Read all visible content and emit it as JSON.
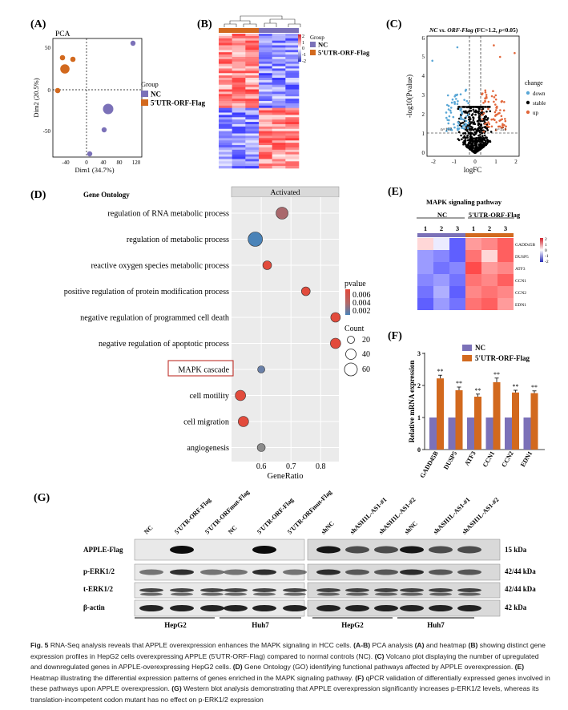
{
  "panel_labels": {
    "a": "(A)",
    "b": "(B)",
    "c": "(C)",
    "d": "(D)",
    "e": "(E)",
    "f": "(F)",
    "g": "(G)"
  },
  "colors": {
    "nc": "#7b71b8",
    "orf": "#d2691e",
    "down": "#5aa7d6",
    "up": "#e2683c",
    "stable": "#000000",
    "high": "#e04a3a",
    "low": "#3a3fc8"
  },
  "pca": {
    "title": "PCA",
    "xlabel": "Dim1 (34.7%)",
    "ylabel": "Dim2 (20.5%)",
    "legend_title": "Group",
    "legend_items": [
      "NC",
      "5'UTR-ORF-Flag"
    ],
    "xticks": [
      "-40",
      "0",
      "40",
      "80",
      "120"
    ],
    "yticks": [
      "50",
      "0",
      "-50"
    ]
  },
  "heatmap_b": {
    "legend_title": "Group",
    "legend_items": [
      "NC",
      "5'UTR-ORF-Flag"
    ],
    "scale_ticks": [
      "2",
      "1",
      "0",
      "-1",
      "-2"
    ]
  },
  "volcano": {
    "title_italic": "NC vs. ORF-Flag",
    "title_rest": " (FC>1.2, ",
    "title_p": "p",
    "title_end": "<0.05)",
    "xlabel": "logFC",
    "ylabel": "-log10(Pvalue)",
    "xticks": [
      "-2",
      "-1",
      "0",
      "1",
      "2"
    ],
    "yticks": [
      "0",
      "1",
      "2",
      "3",
      "4",
      "5",
      "6"
    ],
    "n_down": "n=157",
    "n_up": "n=151",
    "legend_title": "change",
    "legend_items": [
      "down",
      "stable",
      "up"
    ]
  },
  "go": {
    "header": "Gene Ontology",
    "strip": "Activated",
    "xlabel": "GeneRatio",
    "xticks": [
      "0.6",
      "0.7",
      "0.8"
    ],
    "highlight_term": "MAPK cascade",
    "terms": [
      "regulation of RNA metabolic process",
      "regulation of metabolic process",
      "reactive oxygen species metabolic process",
      "positive regulation of protein modification process",
      "negative regulation of programmed cell death",
      "negative regulation of apoptotic process",
      "MAPK cascade",
      "cell motility",
      "cell migration",
      "angiogenesis"
    ],
    "pvalue_title": "pvalue",
    "pvalue_ticks": [
      "0.006",
      "0.004",
      "0.002"
    ],
    "count_title": "Count",
    "count_ticks": [
      "20",
      "40",
      "60"
    ]
  },
  "mapk_heatmap": {
    "title": "MAPK signaling pathway",
    "group_nc": "NC",
    "group_orf": "5'UTR-ORF-Flag",
    "columns": [
      "1",
      "2",
      "3",
      "1",
      "2",
      "3"
    ],
    "genes": [
      "GADD45B",
      "DUSP5",
      "ATF3",
      "CCN1",
      "CCN2",
      "EDN1"
    ],
    "scale_ticks": [
      "2",
      "1",
      "0",
      "-1",
      "-2"
    ]
  },
  "chart_data": {
    "type": "bar",
    "ylabel": "Relative mRNA expression",
    "ylim": [
      0,
      3
    ],
    "yticks": [
      "0",
      "1",
      "2",
      "3"
    ],
    "categories": [
      "GADD45B",
      "DUSP5",
      "ATF3",
      "CCN1",
      "CCN2",
      "EDN1"
    ],
    "series": [
      {
        "name": "NC",
        "values": [
          1,
          1,
          1,
          1,
          1,
          1
        ]
      },
      {
        "name": "5'UTR-ORF-Flag",
        "values": [
          2.22,
          1.85,
          1.65,
          2.1,
          1.78,
          1.76
        ]
      }
    ],
    "errors": [
      0.1,
      0.1,
      0.08,
      0.13,
      0.07,
      0.07
    ],
    "significance": [
      "**",
      "**",
      "**",
      "**",
      "**",
      "**"
    ]
  },
  "western": {
    "lanes_left": [
      "NC",
      "5'UTR-ORF-Flag",
      "5'UTR-ORFmut-Flag",
      "NC",
      "5'UTR-ORF-Flag",
      "5'UTR-ORFmut-Flag"
    ],
    "lanes_right": [
      "shNC",
      "shASH1L-AS1-#1",
      "shASH1L-AS1-#2",
      "shNC",
      "shASH1L-AS1-#1",
      "shASH1L-AS1-#2"
    ],
    "rows": [
      "APPLE-Flag",
      "p-ERK1/2",
      "t-ERK1/2",
      "β-actin"
    ],
    "sizes": [
      "15 kDa",
      "42/44 kDa",
      "42/44 kDa",
      "42 kDa"
    ],
    "groups_left": [
      "HepG2",
      "Huh7"
    ],
    "groups_right": [
      "HepG2",
      "Huh7"
    ]
  },
  "caption": {
    "fig": "Fig. 5",
    "lead": " RNA-Seq analysis reveals that APPLE overexpression enhances the MAPK signaling in HCC cells. ",
    "b_ab": "(A-B)",
    "t1": " PCA analysis ",
    "b_a": "(A)",
    "t2": " and heatmap ",
    "b_b": "(B)",
    "t3": " showing distinct gene expression profiles in HepG2 cells overexpressing APPLE (5'UTR-ORF-Flag) compared to normal controls (NC). ",
    "b_c": "(C)",
    "t4": " Volcano plot displaying the number of upregulated and downregulated genes in APPLE-overexpressing HepG2 cells. ",
    "b_d": "(D)",
    "t5": " Gene Ontology (GO) identifying functional pathways affected by APPLE overexpression. ",
    "b_e": "(E)",
    "t6": " Heatmap illustrating the differential expression patterns of genes enriched in the MAPK signaling pathway. ",
    "b_f": "(F)",
    "t7": " qPCR validation of differentially expressed genes involved in these pathways upon APPLE overexpression. ",
    "b_g": "(G)",
    "t8": " Western blot analysis demonstrating that APPLE overexpression significantly increases p-ERK1/2 levels, whereas its translation-incompetent codon mutant has no effect on p-ERK1/2 expression"
  }
}
